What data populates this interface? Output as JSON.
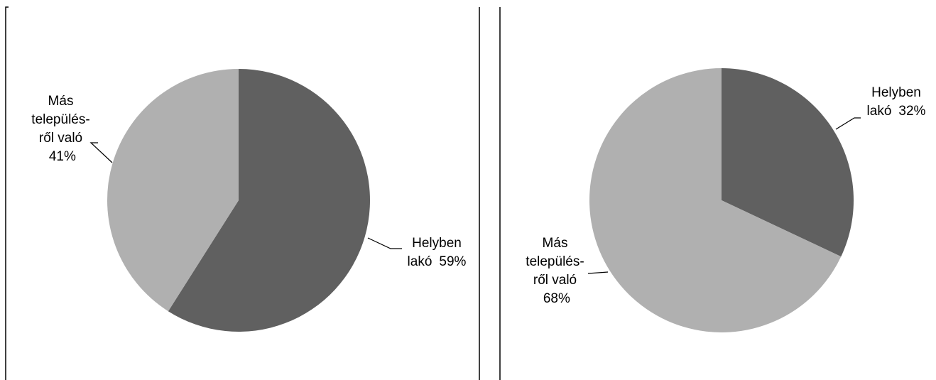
{
  "chart_data": [
    {
      "type": "pie",
      "categories": [
        "Helyben lakó",
        "Más település­ről való"
      ],
      "values": [
        59,
        41
      ],
      "value_labels": [
        "59%",
        "41%"
      ],
      "colors": [
        "#606060",
        "#b0b0b0"
      ]
    },
    {
      "type": "pie",
      "categories": [
        "Helyben lakó",
        "Más település­ről való"
      ],
      "values": [
        32,
        68
      ],
      "value_labels": [
        "32%",
        "68%"
      ],
      "colors": [
        "#606060",
        "#b0b0b0"
      ]
    }
  ]
}
